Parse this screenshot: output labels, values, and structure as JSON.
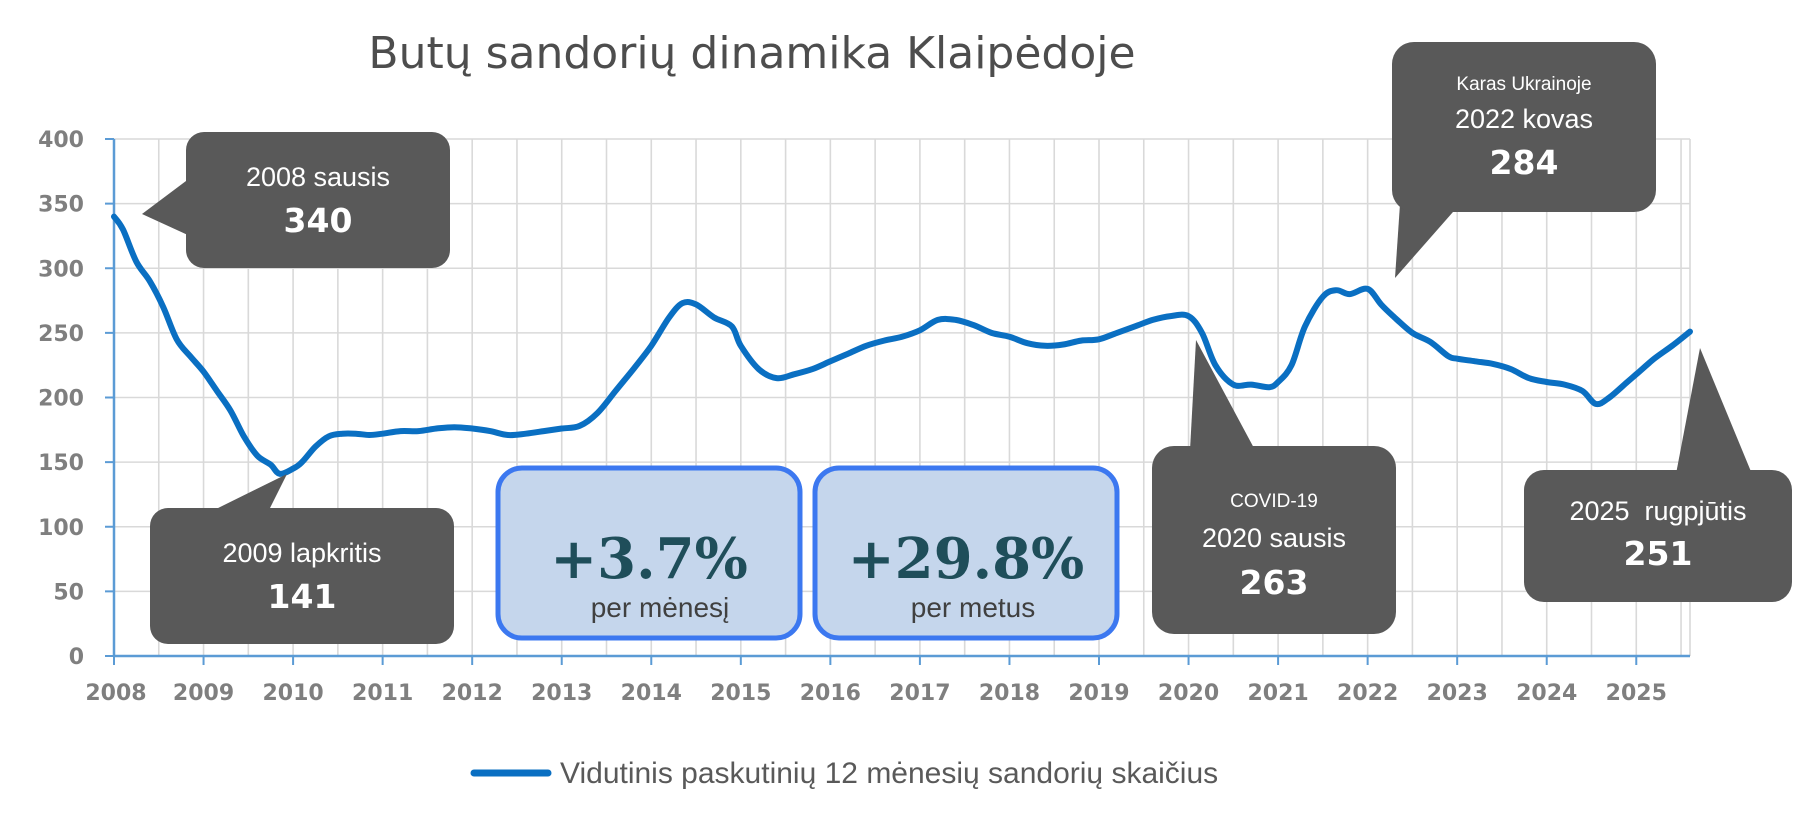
{
  "colors": {
    "series": "#0a6fc2",
    "grid": "#d9d9d9",
    "axis": "#5b9bd5",
    "callout": "#595959",
    "stat_fill": "#c5d6ec",
    "stat_border": "#3c78f0"
  },
  "chart_data": {
    "type": "line",
    "title": "Butų sandorių dinamika Klaipėdoje",
    "xlabel": "",
    "ylabel": "",
    "ylim": [
      0,
      400
    ],
    "y_ticks": [
      "0",
      "50",
      "100",
      "150",
      "200",
      "250",
      "300",
      "350",
      "400"
    ],
    "x_ticks": [
      "2008",
      "2009",
      "2010",
      "2011",
      "2012",
      "2013",
      "2014",
      "2015",
      "2016",
      "2017",
      "2018",
      "2019",
      "2020",
      "2021",
      "2022",
      "2023",
      "2024",
      "2025"
    ],
    "xlim": [
      2008.0,
      2025.6
    ],
    "grid": true,
    "legend_position": "bottom",
    "series": [
      {
        "name": "Vidutinis paskutinių 12 mėnesių sandorių skaičius",
        "x": [
          2008.0,
          2008.1,
          2008.25,
          2008.4,
          2008.55,
          2008.7,
          2008.85,
          2009.0,
          2009.15,
          2009.3,
          2009.45,
          2009.6,
          2009.75,
          2009.85,
          2010.0,
          2010.1,
          2010.25,
          2010.4,
          2010.55,
          2010.7,
          2010.85,
          2011.0,
          2011.2,
          2011.4,
          2011.6,
          2011.8,
          2012.0,
          2012.2,
          2012.4,
          2012.6,
          2012.8,
          2013.0,
          2013.2,
          2013.4,
          2013.6,
          2013.8,
          2014.0,
          2014.2,
          2014.35,
          2014.5,
          2014.7,
          2014.9,
          2015.0,
          2015.2,
          2015.4,
          2015.6,
          2015.8,
          2016.0,
          2016.2,
          2016.4,
          2016.6,
          2016.8,
          2017.0,
          2017.2,
          2017.4,
          2017.6,
          2017.8,
          2018.0,
          2018.2,
          2018.4,
          2018.6,
          2018.8,
          2019.0,
          2019.2,
          2019.4,
          2019.6,
          2019.8,
          2020.0,
          2020.15,
          2020.3,
          2020.5,
          2020.7,
          2020.9,
          2021.0,
          2021.15,
          2021.3,
          2021.5,
          2021.65,
          2021.8,
          2022.0,
          2022.15,
          2022.3,
          2022.5,
          2022.7,
          2022.9,
          2023.0,
          2023.2,
          2023.4,
          2023.6,
          2023.8,
          2024.0,
          2024.2,
          2024.4,
          2024.55,
          2024.7,
          2024.9,
          2025.0,
          2025.2,
          2025.4,
          2025.6
        ],
        "values": [
          340,
          330,
          305,
          290,
          270,
          245,
          232,
          220,
          205,
          190,
          170,
          155,
          148,
          141,
          145,
          150,
          162,
          170,
          172,
          172,
          171,
          172,
          174,
          174,
          176,
          177,
          176,
          174,
          171,
          172,
          174,
          176,
          178,
          188,
          205,
          222,
          240,
          262,
          273,
          272,
          262,
          255,
          240,
          222,
          215,
          218,
          222,
          228,
          234,
          240,
          244,
          247,
          252,
          260,
          260,
          256,
          250,
          247,
          242,
          240,
          241,
          244,
          245,
          250,
          255,
          260,
          263,
          263,
          250,
          225,
          210,
          210,
          208,
          212,
          225,
          255,
          278,
          283,
          280,
          284,
          272,
          262,
          250,
          243,
          232,
          230,
          228,
          226,
          222,
          215,
          212,
          210,
          205,
          195,
          200,
          212,
          218,
          230,
          240,
          251
        ]
      }
    ],
    "callouts": [
      {
        "label": "2008 sausis",
        "value": "340"
      },
      {
        "label": "2009 lapkritis",
        "value": "141"
      },
      {
        "note": "COVID-19",
        "label": "2020 sausis",
        "value": "263"
      },
      {
        "note": "Karas Ukrainoje",
        "label": "2022 kovas",
        "value": "284"
      },
      {
        "label": "2025  rugpjūtis",
        "value": "251"
      }
    ],
    "stats": [
      {
        "value": "+3.7%",
        "label": "per mėnesį"
      },
      {
        "value": "+29.8%",
        "label": "per metus"
      }
    ]
  }
}
